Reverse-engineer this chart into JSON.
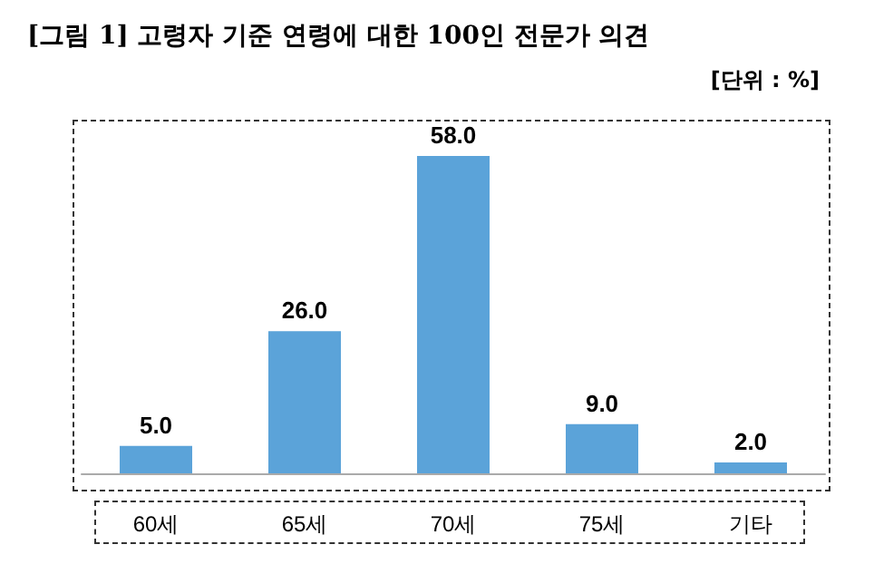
{
  "chart_data": {
    "type": "bar",
    "title": "[그림 1] 고령자 기준 연령에 대한 100인 전문가 의견",
    "annotations": [
      "[단위 : %]"
    ],
    "categories": [
      "60세",
      "65세",
      "70세",
      "75세",
      "기타"
    ],
    "values": [
      5.0,
      26.0,
      58.0,
      9.0,
      2.0
    ],
    "value_labels": [
      "5.0",
      "26.0",
      "58.0",
      "9.0",
      "2.0"
    ],
    "color": "#5ba3d9",
    "grid": false
  }
}
